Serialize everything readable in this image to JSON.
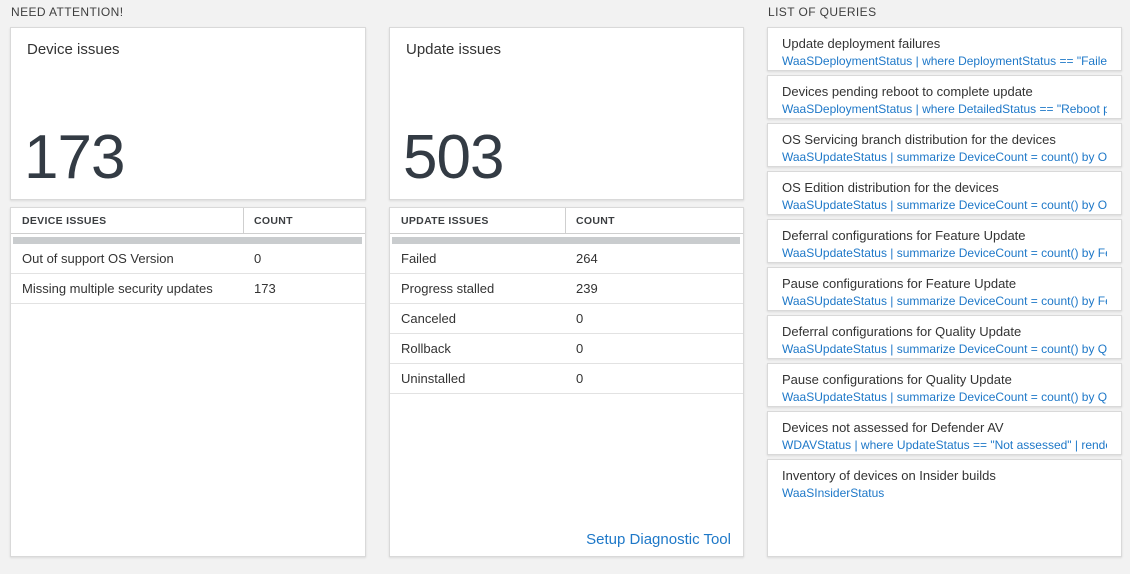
{
  "sections": {
    "need_attention": "NEED ATTENTION!",
    "list_of_queries": "LIST OF QUERIES"
  },
  "colors": {
    "accent_blue": "#1e78c8",
    "big_number_text": "#333b44",
    "page_background": "#f2f2f2",
    "thick_bar": "#c9ccce"
  },
  "device_panel": {
    "title": "Device issues",
    "count": "173",
    "table": {
      "headers": [
        "DEVICE ISSUES",
        "COUNT"
      ],
      "rows": [
        {
          "label": "Out of support OS Version",
          "count": "0"
        },
        {
          "label": "Missing multiple security updates",
          "count": "173"
        }
      ]
    }
  },
  "update_panel": {
    "title": "Update issues",
    "count": "503",
    "table": {
      "headers": [
        "UPDATE ISSUES",
        "COUNT"
      ],
      "rows": [
        {
          "label": "Failed",
          "count": "264"
        },
        {
          "label": "Progress stalled",
          "count": "239"
        },
        {
          "label": "Canceled",
          "count": "0"
        },
        {
          "label": "Rollback",
          "count": "0"
        },
        {
          "label": "Uninstalled",
          "count": "0"
        }
      ]
    },
    "link_label": "Setup Diagnostic Tool"
  },
  "queries": [
    {
      "title": "Update deployment failures",
      "query": "WaaSDeploymentStatus | where DeploymentStatus == \"Failed\" |..."
    },
    {
      "title": "Devices pending reboot to complete update",
      "query": "WaaSDeploymentStatus | where DetailedStatus == \"Reboot pend..."
    },
    {
      "title": "OS Servicing branch distribution for the devices",
      "query": "WaaSUpdateStatus | summarize DeviceCount = count() by OSSer..."
    },
    {
      "title": "OS Edition distribution for the devices",
      "query": "WaaSUpdateStatus | summarize DeviceCount = count() by OSEdit..."
    },
    {
      "title": "Deferral configurations for Feature Update",
      "query": "WaaSUpdateStatus | summarize DeviceCount = count() by Featur..."
    },
    {
      "title": "Pause configurations for Feature Update",
      "query": "WaaSUpdateStatus | summarize DeviceCount = count() by Featur..."
    },
    {
      "title": "Deferral configurations for Quality Update",
      "query": "WaaSUpdateStatus | summarize DeviceCount = count() by Qualit..."
    },
    {
      "title": "Pause configurations for Quality Update",
      "query": "WaaSUpdateStatus | summarize DeviceCount = count() by Qualit..."
    },
    {
      "title": "Devices not assessed for Defender AV",
      "query": "WDAVStatus | where UpdateStatus == \"Not assessed\" | render ta..."
    },
    {
      "title": "Inventory of devices on Insider builds",
      "query": "WaaSInsiderStatus"
    }
  ]
}
